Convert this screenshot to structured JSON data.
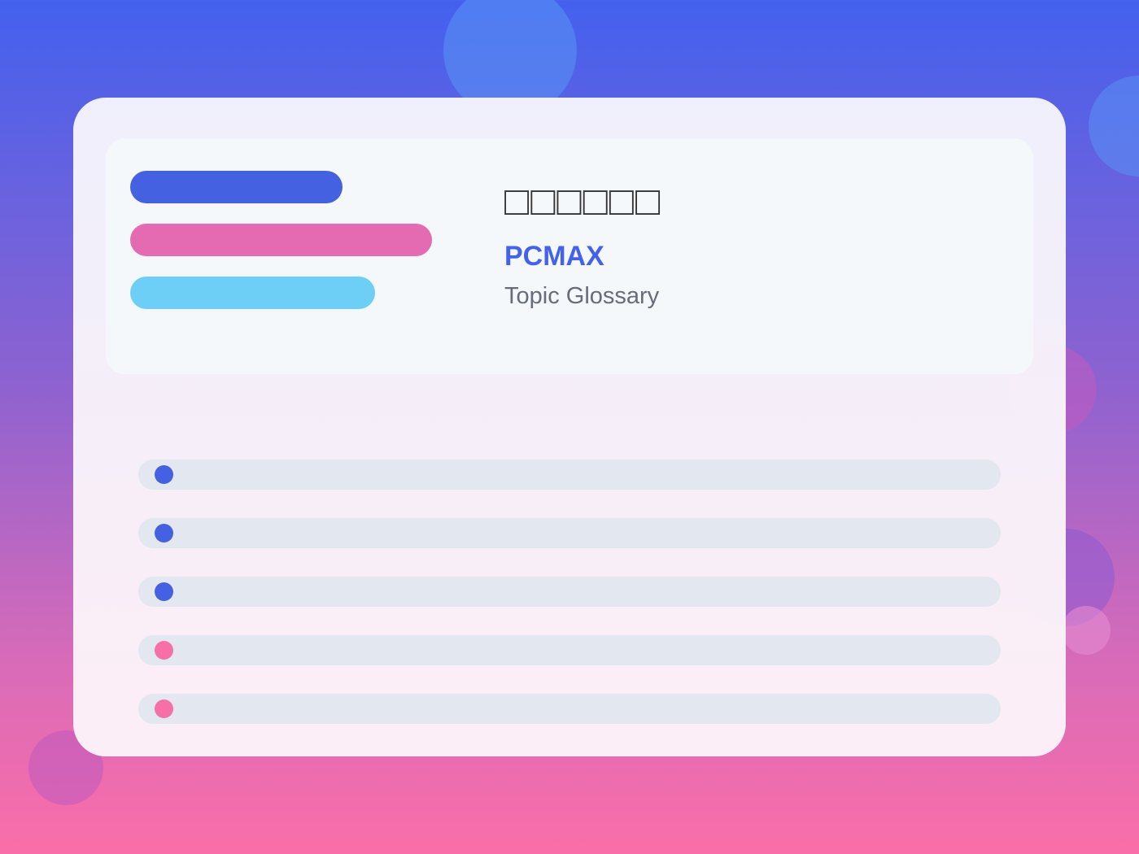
{
  "header": {
    "title": "□□□□□□",
    "brand": "PCMAX",
    "subtitle": "Topic Glossary"
  }
}
